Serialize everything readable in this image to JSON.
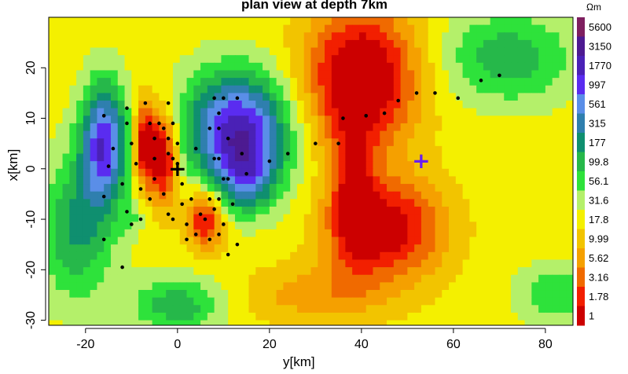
{
  "chart_data": {
    "type": "heatmap",
    "title": "plan view at depth 7km",
    "xlabel": "y[km]",
    "ylabel": "x[km]",
    "xlim": [
      -28,
      86
    ],
    "ylim": [
      -31,
      30
    ],
    "x_ticks": [
      "-20",
      "0",
      "20",
      "40",
      "60",
      "80"
    ],
    "x_tick_values": [
      -20,
      0,
      20,
      40,
      60,
      80
    ],
    "y_ticks": [
      "20",
      "10",
      "0",
      "-10",
      "-20",
      "-30"
    ],
    "y_tick_values": [
      20,
      10,
      0,
      -10,
      -20,
      -30
    ],
    "colorbar_unit": "Ωm",
    "colorbar_labels": [
      "5600",
      "3150",
      "1770",
      "997",
      "561",
      "315",
      "177",
      "99.8",
      "56.1",
      "31.6",
      "17.8",
      "9.99",
      "5.62",
      "3.16",
      "1.78",
      "1"
    ],
    "colorbar_colors": [
      "#7e1f5f",
      "#4d1a91",
      "#4a21b6",
      "#5a2cf0",
      "#5a8ee8",
      "#2f7fae",
      "#0f8f6f",
      "#26b84a",
      "#2ee23b",
      "#b4f06a",
      "#f4f000",
      "#f2c400",
      "#f5a000",
      "#f06a00",
      "#f21f00",
      "#cc0000"
    ],
    "stations": [
      [
        -16,
        10.5
      ],
      [
        -15,
        0.5
      ],
      [
        -14,
        4
      ],
      [
        -16,
        -5.5
      ],
      [
        -12,
        -3
      ],
      [
        -11,
        -8.5
      ],
      [
        -10,
        -11
      ],
      [
        -16,
        -14
      ],
      [
        -12,
        -19.5
      ],
      [
        -11,
        9
      ],
      [
        -11,
        12
      ],
      [
        -10,
        5
      ],
      [
        -9,
        1
      ],
      [
        -8,
        -4
      ],
      [
        -7,
        13
      ],
      [
        -6,
        9
      ],
      [
        -5,
        6
      ],
      [
        -4,
        9
      ],
      [
        -3,
        8
      ],
      [
        -2,
        6
      ],
      [
        -2,
        13
      ],
      [
        -2,
        3
      ],
      [
        -1,
        9
      ],
      [
        -1,
        2
      ],
      [
        -5,
        2
      ],
      [
        -5,
        -2
      ],
      [
        -6,
        -6
      ],
      [
        -3,
        -5
      ],
      [
        -2,
        -9
      ],
      [
        -1,
        -10
      ],
      [
        0,
        5
      ],
      [
        0,
        1
      ],
      [
        1,
        -3
      ],
      [
        1,
        -7
      ],
      [
        2,
        -11
      ],
      [
        2,
        -14
      ],
      [
        4,
        -13
      ],
      [
        3,
        -6
      ],
      [
        4,
        4
      ],
      [
        5,
        -9
      ],
      [
        6,
        -10
      ],
      [
        7,
        -6
      ],
      [
        7,
        -14
      ],
      [
        8,
        -8
      ],
      [
        9,
        -13
      ],
      [
        9,
        -6
      ],
      [
        10,
        -11
      ],
      [
        11,
        -17
      ],
      [
        8,
        14
      ],
      [
        9,
        11
      ],
      [
        9,
        8
      ],
      [
        7,
        8
      ],
      [
        8,
        2
      ],
      [
        9,
        2
      ],
      [
        10,
        14
      ],
      [
        11,
        6
      ],
      [
        13,
        -15
      ],
      [
        13,
        14
      ],
      [
        14,
        3
      ],
      [
        15,
        -1
      ],
      [
        12,
        -7
      ],
      [
        20,
        1.5
      ],
      [
        24,
        3
      ],
      [
        30,
        5
      ],
      [
        35,
        5
      ],
      [
        36,
        10
      ],
      [
        41,
        10.5
      ],
      [
        45,
        11
      ],
      [
        48,
        13.5
      ],
      [
        52,
        15
      ],
      [
        56,
        15
      ],
      [
        61,
        14
      ],
      [
        66,
        17.5
      ],
      [
        70,
        18.5
      ],
      [
        11,
        -2
      ],
      [
        10,
        -2
      ],
      [
        -8,
        -10
      ]
    ],
    "markers": [
      {
        "label": "+",
        "x": 0,
        "y": 0,
        "color": "#000000"
      },
      {
        "label": "+",
        "x": 53,
        "y": 1.5,
        "color": "#6a1ef0"
      }
    ]
  }
}
